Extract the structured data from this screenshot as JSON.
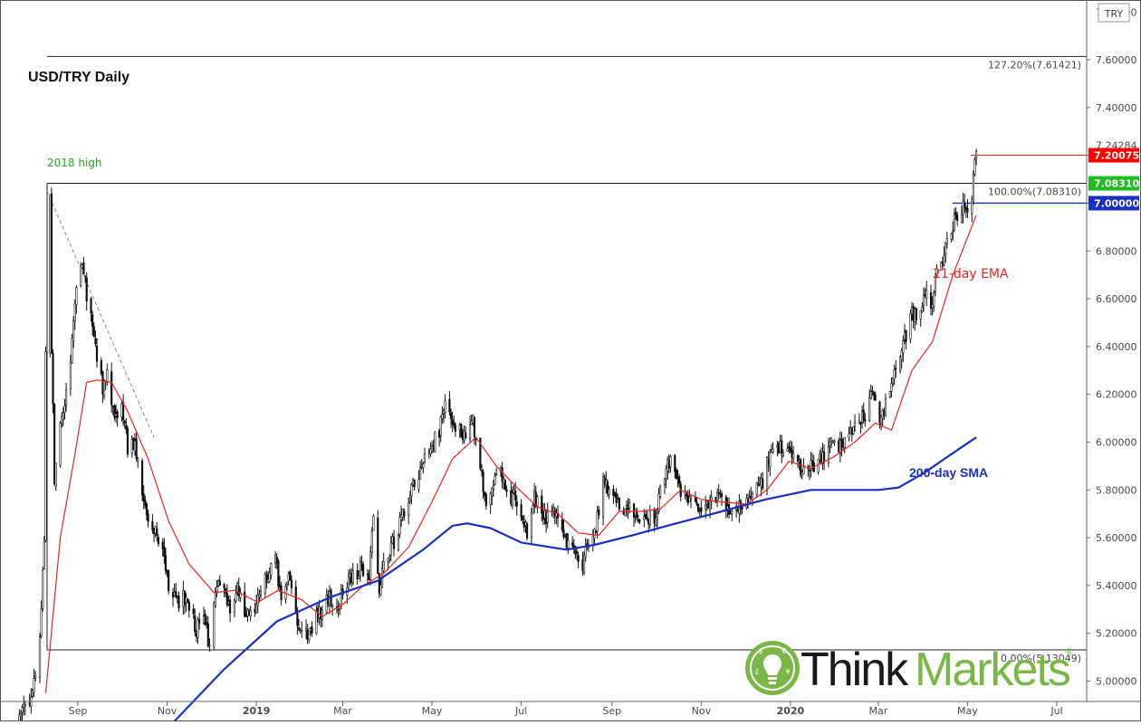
{
  "chart_data": {
    "type": "candlestick",
    "title": "USD/TRY Daily",
    "currency_tag": "TRY",
    "ylim": [
      4.82,
      7.82
    ],
    "y_ticks": [
      "5.00000",
      "5.20000",
      "5.40000",
      "5.60000",
      "5.80000",
      "6.00000",
      "6.20000",
      "6.40000",
      "6.60000",
      "6.80000",
      "7.00000",
      "7.20000",
      "7.40000",
      "7.60000"
    ],
    "top_partial_tick": "7.80000",
    "x_ticks": [
      {
        "label": "Sep",
        "date": "2018-09-01"
      },
      {
        "label": "Nov",
        "date": "2018-11-01"
      },
      {
        "label": "2019",
        "date": "2019-01-01"
      },
      {
        "label": "Mar",
        "date": "2019-03-01"
      },
      {
        "label": "May",
        "date": "2019-05-01"
      },
      {
        "label": "Jul",
        "date": "2019-07-01"
      },
      {
        "label": "Sep",
        "date": "2019-09-01"
      },
      {
        "label": "Nov",
        "date": "2019-11-01"
      },
      {
        "label": "2020",
        "date": "2020-01-01"
      },
      {
        "label": "Mar",
        "date": "2020-03-01"
      },
      {
        "label": "May",
        "date": "2020-05-01"
      },
      {
        "label": "Jul",
        "date": "2020-07-01"
      }
    ],
    "price_path": [
      [
        "2018-07-20",
        4.81
      ],
      [
        "2018-08-01",
        4.95
      ],
      [
        "2018-08-06",
        5.2
      ],
      [
        "2018-08-09",
        5.6
      ],
      [
        "2018-08-10",
        6.35
      ],
      [
        "2018-08-13",
        7.05
      ],
      [
        "2018-08-14",
        6.4
      ],
      [
        "2018-08-16",
        5.85
      ],
      [
        "2018-08-20",
        6.05
      ],
      [
        "2018-08-24",
        6.2
      ],
      [
        "2018-08-28",
        6.4
      ],
      [
        "2018-08-31",
        6.65
      ],
      [
        "2018-09-04",
        6.75
      ],
      [
        "2018-09-07",
        6.62
      ],
      [
        "2018-09-11",
        6.5
      ],
      [
        "2018-09-14",
        6.35
      ],
      [
        "2018-09-18",
        6.22
      ],
      [
        "2018-09-21",
        6.27
      ],
      [
        "2018-09-26",
        6.1
      ],
      [
        "2018-10-01",
        6.15
      ],
      [
        "2018-10-05",
        5.98
      ],
      [
        "2018-10-10",
        6.0
      ],
      [
        "2018-10-15",
        5.78
      ],
      [
        "2018-10-19",
        5.67
      ],
      [
        "2018-10-24",
        5.63
      ],
      [
        "2018-10-29",
        5.52
      ],
      [
        "2018-11-02",
        5.4
      ],
      [
        "2018-11-07",
        5.32
      ],
      [
        "2018-11-12",
        5.35
      ],
      [
        "2018-11-16",
        5.3
      ],
      [
        "2018-11-21",
        5.22
      ],
      [
        "2018-11-26",
        5.26
      ],
      [
        "2018-11-30",
        5.15
      ],
      [
        "2018-12-05",
        5.4
      ],
      [
        "2018-12-10",
        5.36
      ],
      [
        "2018-12-14",
        5.3
      ],
      [
        "2018-12-19",
        5.38
      ],
      [
        "2018-12-24",
        5.28
      ],
      [
        "2018-12-31",
        5.3
      ],
      [
        "2019-01-04",
        5.37
      ],
      [
        "2019-01-09",
        5.45
      ],
      [
        "2019-01-14",
        5.5
      ],
      [
        "2019-01-18",
        5.36
      ],
      [
        "2019-01-23",
        5.42
      ],
      [
        "2019-01-28",
        5.28
      ],
      [
        "2019-02-01",
        5.22
      ],
      [
        "2019-02-06",
        5.2
      ],
      [
        "2019-02-11",
        5.28
      ],
      [
        "2019-02-15",
        5.3
      ],
      [
        "2019-02-20",
        5.35
      ],
      [
        "2019-02-26",
        5.33
      ],
      [
        "2019-03-04",
        5.4
      ],
      [
        "2019-03-08",
        5.45
      ],
      [
        "2019-03-14",
        5.47
      ],
      [
        "2019-03-19",
        5.44
      ],
      [
        "2019-03-22",
        5.68
      ],
      [
        "2019-03-26",
        5.35
      ],
      [
        "2019-03-28",
        5.46
      ],
      [
        "2019-04-03",
        5.56
      ],
      [
        "2019-04-08",
        5.63
      ],
      [
        "2019-04-12",
        5.72
      ],
      [
        "2019-04-18",
        5.81
      ],
      [
        "2019-04-24",
        5.9
      ],
      [
        "2019-04-30",
        5.97
      ],
      [
        "2019-05-06",
        6.05
      ],
      [
        "2019-05-10",
        6.18
      ],
      [
        "2019-05-14",
        6.08
      ],
      [
        "2019-05-20",
        6.05
      ],
      [
        "2019-05-24",
        6.0
      ],
      [
        "2019-05-29",
        6.1
      ],
      [
        "2019-06-03",
        5.88
      ],
      [
        "2019-06-07",
        5.75
      ],
      [
        "2019-06-12",
        5.82
      ],
      [
        "2019-06-17",
        5.9
      ],
      [
        "2019-06-21",
        5.77
      ],
      [
        "2019-06-26",
        5.78
      ],
      [
        "2019-07-01",
        5.68
      ],
      [
        "2019-07-05",
        5.62
      ],
      [
        "2019-07-10",
        5.77
      ],
      [
        "2019-07-15",
        5.72
      ],
      [
        "2019-07-19",
        5.68
      ],
      [
        "2019-07-24",
        5.7
      ],
      [
        "2019-07-29",
        5.65
      ],
      [
        "2019-08-02",
        5.57
      ],
      [
        "2019-08-07",
        5.55
      ],
      [
        "2019-08-12",
        5.48
      ],
      [
        "2019-08-16",
        5.6
      ],
      [
        "2019-08-21",
        5.65
      ],
      [
        "2019-08-26",
        5.85
      ],
      [
        "2019-08-30",
        5.8
      ],
      [
        "2019-09-04",
        5.78
      ],
      [
        "2019-09-09",
        5.7
      ],
      [
        "2019-09-13",
        5.72
      ],
      [
        "2019-09-18",
        5.68
      ],
      [
        "2019-09-24",
        5.7
      ],
      [
        "2019-09-30",
        5.66
      ],
      [
        "2019-10-04",
        5.8
      ],
      [
        "2019-10-08",
        5.88
      ],
      [
        "2019-10-11",
        5.92
      ],
      [
        "2019-10-16",
        5.82
      ],
      [
        "2019-10-21",
        5.78
      ],
      [
        "2019-10-25",
        5.75
      ],
      [
        "2019-10-30",
        5.72
      ],
      [
        "2019-11-04",
        5.72
      ],
      [
        "2019-11-08",
        5.76
      ],
      [
        "2019-11-13",
        5.78
      ],
      [
        "2019-11-19",
        5.73
      ],
      [
        "2019-11-25",
        5.72
      ],
      [
        "2019-11-29",
        5.75
      ],
      [
        "2019-12-04",
        5.78
      ],
      [
        "2019-12-09",
        5.82
      ],
      [
        "2019-12-13",
        5.84
      ],
      [
        "2019-12-18",
        5.95
      ],
      [
        "2019-12-24",
        5.97
      ],
      [
        "2019-12-31",
        5.96
      ],
      [
        "2020-01-06",
        5.9
      ],
      [
        "2020-01-10",
        5.87
      ],
      [
        "2020-01-15",
        5.9
      ],
      [
        "2020-01-21",
        5.93
      ],
      [
        "2020-01-27",
        5.97
      ],
      [
        "2020-01-31",
        5.98
      ],
      [
        "2020-02-05",
        6.0
      ],
      [
        "2020-02-11",
        6.03
      ],
      [
        "2020-02-17",
        6.07
      ],
      [
        "2020-02-21",
        6.12
      ],
      [
        "2020-02-26",
        6.22
      ],
      [
        "2020-03-02",
        6.1
      ],
      [
        "2020-03-06",
        6.15
      ],
      [
        "2020-03-11",
        6.25
      ],
      [
        "2020-03-16",
        6.35
      ],
      [
        "2020-03-20",
        6.45
      ],
      [
        "2020-03-24",
        6.55
      ],
      [
        "2020-03-27",
        6.52
      ],
      [
        "2020-04-01",
        6.6
      ],
      [
        "2020-04-03",
        6.65
      ],
      [
        "2020-04-07",
        6.55
      ],
      [
        "2020-04-10",
        6.72
      ],
      [
        "2020-04-14",
        6.78
      ],
      [
        "2020-04-17",
        6.85
      ],
      [
        "2020-04-21",
        6.9
      ],
      [
        "2020-04-24",
        6.96
      ],
      [
        "2020-04-28",
        6.99
      ],
      [
        "2020-05-01",
        6.97
      ],
      [
        "2020-05-04",
        7.02
      ],
      [
        "2020-05-05",
        7.1
      ],
      [
        "2020-05-06",
        7.2
      ],
      [
        "2020-05-07",
        7.22
      ]
    ],
    "ema21": [
      [
        "2018-08-10",
        4.95
      ],
      [
        "2018-08-20",
        5.6
      ],
      [
        "2018-08-30",
        5.95
      ],
      [
        "2018-09-07",
        6.25
      ],
      [
        "2018-09-14",
        6.26
      ],
      [
        "2018-09-24",
        6.25
      ],
      [
        "2018-10-05",
        6.13
      ],
      [
        "2018-10-19",
        5.93
      ],
      [
        "2018-11-02",
        5.67
      ],
      [
        "2018-11-16",
        5.49
      ],
      [
        "2018-12-03",
        5.37
      ],
      [
        "2018-12-17",
        5.38
      ],
      [
        "2019-01-02",
        5.33
      ],
      [
        "2019-01-16",
        5.38
      ],
      [
        "2019-02-01",
        5.34
      ],
      [
        "2019-02-15",
        5.27
      ],
      [
        "2019-03-01",
        5.32
      ],
      [
        "2019-03-15",
        5.4
      ],
      [
        "2019-03-29",
        5.45
      ],
      [
        "2019-04-15",
        5.56
      ],
      [
        "2019-05-01",
        5.75
      ],
      [
        "2019-05-15",
        5.93
      ],
      [
        "2019-05-31",
        6.02
      ],
      [
        "2019-06-14",
        5.9
      ],
      [
        "2019-06-28",
        5.81
      ],
      [
        "2019-07-12",
        5.73
      ],
      [
        "2019-07-26",
        5.7
      ],
      [
        "2019-08-09",
        5.62
      ],
      [
        "2019-08-23",
        5.61
      ],
      [
        "2019-09-06",
        5.71
      ],
      [
        "2019-09-20",
        5.71
      ],
      [
        "2019-10-04",
        5.72
      ],
      [
        "2019-10-18",
        5.8
      ],
      [
        "2019-11-01",
        5.76
      ],
      [
        "2019-11-15",
        5.75
      ],
      [
        "2019-12-02",
        5.74
      ],
      [
        "2019-12-16",
        5.8
      ],
      [
        "2019-12-31",
        5.92
      ],
      [
        "2020-01-15",
        5.89
      ],
      [
        "2020-01-31",
        5.94
      ],
      [
        "2020-02-14",
        6.0
      ],
      [
        "2020-02-28",
        6.08
      ],
      [
        "2020-03-10",
        6.05
      ],
      [
        "2020-03-24",
        6.3
      ],
      [
        "2020-04-07",
        6.42
      ],
      [
        "2020-04-21",
        6.7
      ],
      [
        "2020-05-07",
        6.95
      ]
    ],
    "sma200": [
      [
        "2018-11-01",
        4.8
      ],
      [
        "2018-12-10",
        5.05
      ],
      [
        "2019-01-15",
        5.25
      ],
      [
        "2019-02-20",
        5.35
      ],
      [
        "2019-03-25",
        5.42
      ],
      [
        "2019-04-25",
        5.55
      ],
      [
        "2019-05-15",
        5.65
      ],
      [
        "2019-05-25",
        5.66
      ],
      [
        "2019-06-10",
        5.64
      ],
      [
        "2019-07-01",
        5.58
      ],
      [
        "2019-08-01",
        5.55
      ],
      [
        "2019-08-20",
        5.57
      ],
      [
        "2019-09-15",
        5.61
      ],
      [
        "2019-10-15",
        5.66
      ],
      [
        "2019-11-15",
        5.71
      ],
      [
        "2019-12-15",
        5.76
      ],
      [
        "2020-01-15",
        5.8
      ],
      [
        "2020-02-15",
        5.8
      ],
      [
        "2020-03-01",
        5.8
      ],
      [
        "2020-03-15",
        5.81
      ],
      [
        "2020-04-01",
        5.87
      ],
      [
        "2020-04-20",
        5.95
      ],
      [
        "2020-05-07",
        6.02
      ]
    ],
    "levels": [
      {
        "value": 7.61421,
        "label": "127.20%(7.61421)"
      },
      {
        "value": 7.0831,
        "label": "100.00%(7.08310)"
      },
      {
        "value": 5.13049,
        "label": "0.00%(5.13049)"
      }
    ],
    "price_labels": [
      {
        "value": 7.24284,
        "text": "7.24284"
      },
      {
        "value": 7.20075,
        "text": "7.20075",
        "color": "#ff0000"
      },
      {
        "value": 7.0831,
        "text": "7.08310",
        "color": "#22bb22"
      },
      {
        "value": 7.0,
        "text": "7.00000",
        "color": "#1a2fbf"
      }
    ],
    "annotations": {
      "high_label": "2018 high",
      "ema_label": "21-day EMA",
      "sma_label": "200-day SMA"
    }
  },
  "brand": {
    "logo_text_1": "Think",
    "logo_text_2": "Markets",
    "registered": "®"
  },
  "colors": {
    "ema": "#ee2222",
    "sma": "#1a2fbf",
    "high_label": "#22aa22",
    "brand_green": "#7ab648",
    "brand_dark": "#1a1a1a"
  }
}
